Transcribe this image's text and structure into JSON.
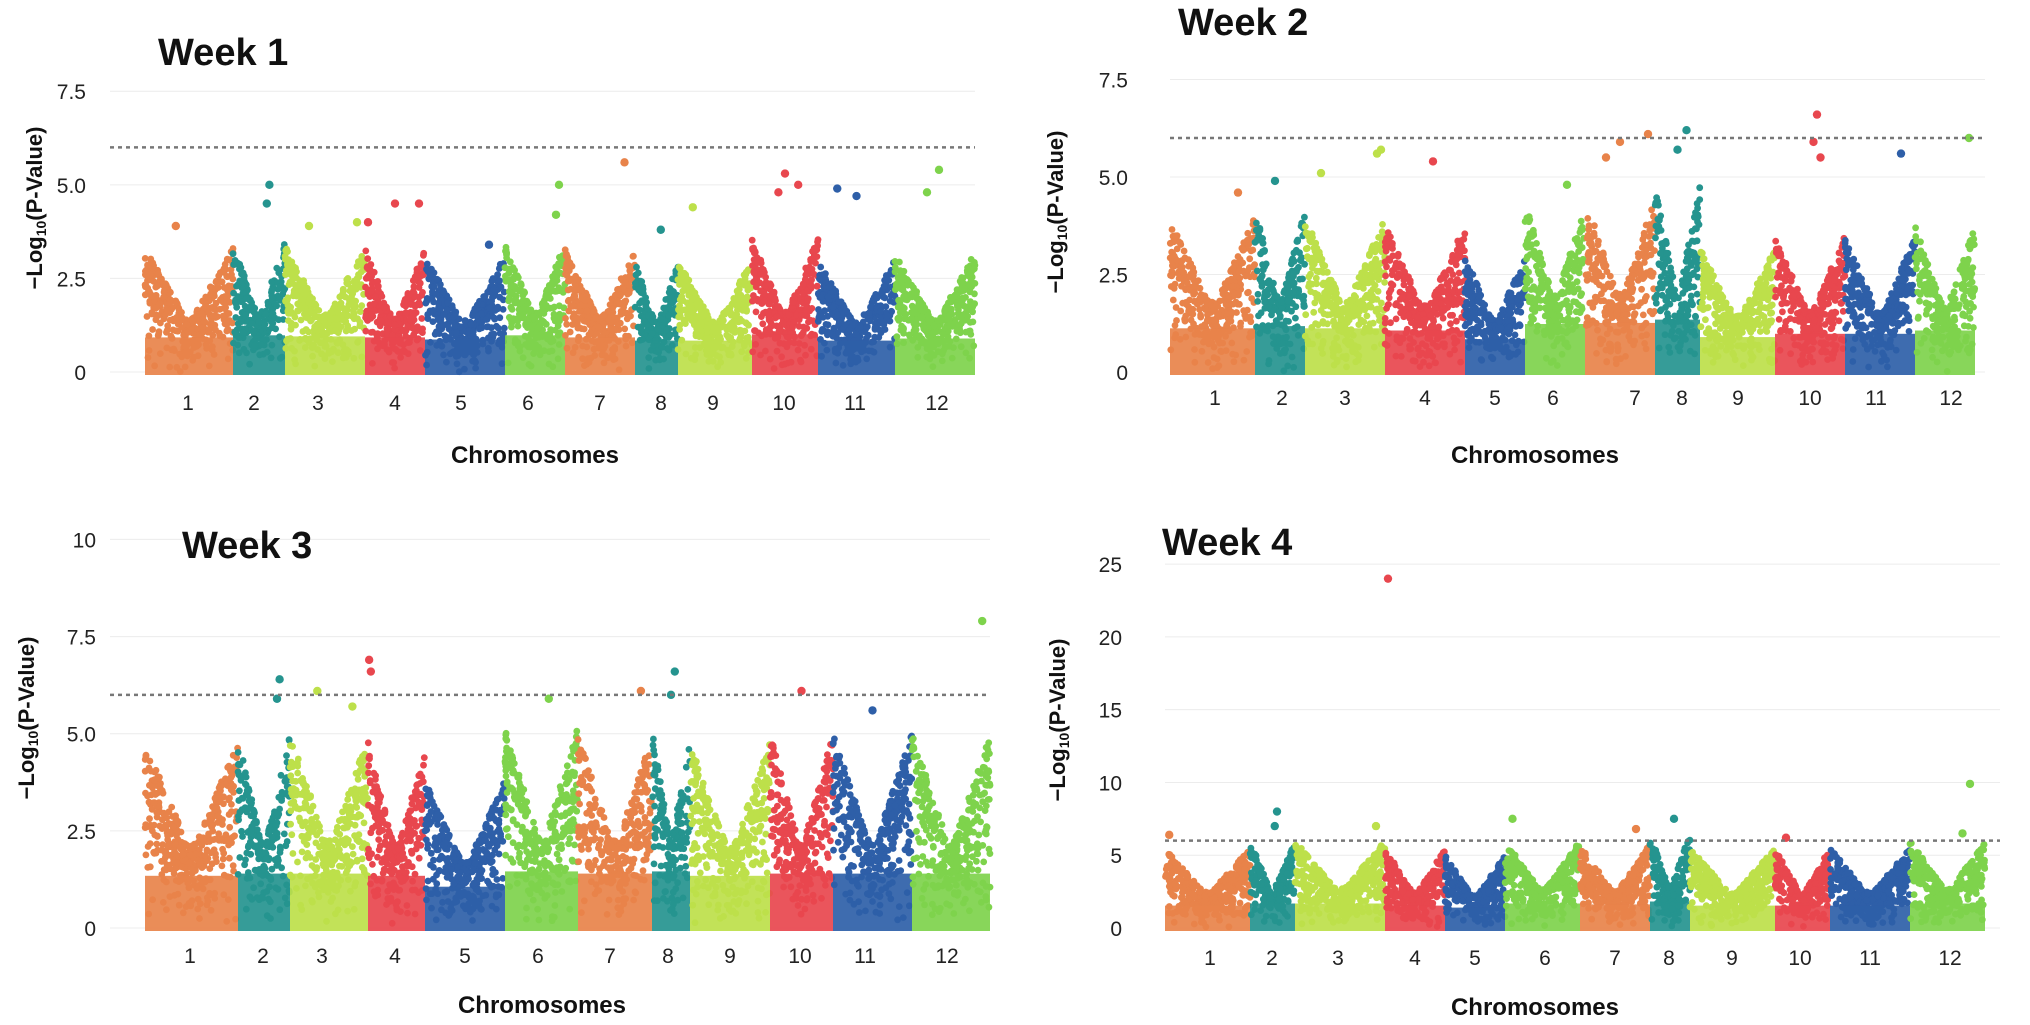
{
  "threshold": 6,
  "colors": {
    "chr1": "#e8834a",
    "chr2": "#25948f",
    "chr3": "#bde04a",
    "chr4": "#e8474e",
    "chr5": "#2e5fa8",
    "chr6": "#7ed34c",
    "chr7": "#e8834a",
    "chr8": "#25948f",
    "chr9": "#bde04a",
    "chr10": "#e8474e",
    "chr11": "#2e5fa8",
    "chr12": "#7ed34c",
    "threshold": "#777777",
    "grid": "#ececec"
  },
  "chart_data": [
    {
      "type": "scatter",
      "title": "Week 1",
      "xlabel": "Chromosomes",
      "ylabel": "−Log10(P-Value)",
      "ylabel_main": "−Log",
      "ylabel_sub": "10",
      "ylabel_tail": "(P-Value)",
      "ylim": [
        0,
        7.8
      ],
      "yticks": [
        "0",
        "2.5",
        "5.0",
        "7.5"
      ],
      "ytick_values": [
        0,
        2.5,
        5,
        7.5
      ],
      "categories": [
        "1",
        "2",
        "3",
        "4",
        "5",
        "6",
        "7",
        "8",
        "9",
        "10",
        "11",
        "12"
      ],
      "base_max": [
        3.3,
        3.5,
        3.4,
        3.3,
        3.1,
        3.5,
        3.3,
        3.0,
        3.0,
        3.6,
        3.0,
        3.2
      ],
      "peaks": [
        {
          "chr": 1,
          "pos": 0.35,
          "y": 3.9
        },
        {
          "chr": 2,
          "pos": 0.7,
          "y": 5.0
        },
        {
          "chr": 2,
          "pos": 0.65,
          "y": 4.5
        },
        {
          "chr": 3,
          "pos": 0.3,
          "y": 3.9
        },
        {
          "chr": 3,
          "pos": 0.9,
          "y": 4.0
        },
        {
          "chr": 4,
          "pos": 0.05,
          "y": 4.0
        },
        {
          "chr": 4,
          "pos": 0.5,
          "y": 4.5
        },
        {
          "chr": 4,
          "pos": 0.9,
          "y": 4.5
        },
        {
          "chr": 5,
          "pos": 0.8,
          "y": 3.4
        },
        {
          "chr": 6,
          "pos": 0.9,
          "y": 5.0
        },
        {
          "chr": 6,
          "pos": 0.85,
          "y": 4.2
        },
        {
          "chr": 7,
          "pos": 0.85,
          "y": 5.6
        },
        {
          "chr": 8,
          "pos": 0.6,
          "y": 3.8
        },
        {
          "chr": 9,
          "pos": 0.2,
          "y": 4.4
        },
        {
          "chr": 10,
          "pos": 0.5,
          "y": 5.3
        },
        {
          "chr": 10,
          "pos": 0.4,
          "y": 4.8
        },
        {
          "chr": 10,
          "pos": 0.7,
          "y": 5.0
        },
        {
          "chr": 11,
          "pos": 0.25,
          "y": 4.9
        },
        {
          "chr": 11,
          "pos": 0.5,
          "y": 4.7
        },
        {
          "chr": 12,
          "pos": 0.55,
          "y": 5.4
        },
        {
          "chr": 12,
          "pos": 0.4,
          "y": 4.8
        }
      ]
    },
    {
      "type": "scatter",
      "title": "Week 2",
      "xlabel": "Chromosomes",
      "ylabel": "−Log10(P-Value)",
      "ylabel_main": "−Log",
      "ylabel_sub": "10",
      "ylabel_tail": "(P-Value)",
      "ylim": [
        0,
        8.0
      ],
      "yticks": [
        "0",
        "2.5",
        "5.0",
        "7.5"
      ],
      "ytick_values": [
        0,
        2.5,
        5,
        7.5
      ],
      "categories": [
        "1",
        "2",
        "3",
        "4",
        "5",
        "6",
        "7",
        "8",
        "9",
        "10",
        "11",
        "12"
      ],
      "base_max": [
        4.0,
        4.2,
        4.0,
        3.8,
        3.0,
        4.4,
        4.5,
        4.8,
        3.2,
        3.5,
        3.5,
        3.8
      ],
      "peaks": [
        {
          "chr": 1,
          "pos": 0.8,
          "y": 4.6
        },
        {
          "chr": 2,
          "pos": 0.4,
          "y": 4.9
        },
        {
          "chr": 3,
          "pos": 0.2,
          "y": 5.1
        },
        {
          "chr": 3,
          "pos": 0.95,
          "y": 5.7
        },
        {
          "chr": 3,
          "pos": 0.9,
          "y": 5.6
        },
        {
          "chr": 4,
          "pos": 0.6,
          "y": 5.4
        },
        {
          "chr": 6,
          "pos": 0.7,
          "y": 4.8
        },
        {
          "chr": 7,
          "pos": 0.5,
          "y": 5.9
        },
        {
          "chr": 7,
          "pos": 0.9,
          "y": 6.1
        },
        {
          "chr": 7,
          "pos": 0.3,
          "y": 5.5
        },
        {
          "chr": 8,
          "pos": 0.7,
          "y": 6.2
        },
        {
          "chr": 8,
          "pos": 0.5,
          "y": 5.7
        },
        {
          "chr": 10,
          "pos": 0.6,
          "y": 6.6
        },
        {
          "chr": 10,
          "pos": 0.55,
          "y": 5.9
        },
        {
          "chr": 10,
          "pos": 0.65,
          "y": 5.5
        },
        {
          "chr": 11,
          "pos": 0.8,
          "y": 5.6
        },
        {
          "chr": 12,
          "pos": 0.9,
          "y": 6.0
        }
      ]
    },
    {
      "type": "scatter",
      "title": "Week 3",
      "xlabel": "Chromosomes",
      "ylabel": "−Log10(P-Value)",
      "ylabel_main": "−Log",
      "ylabel_sub": "10",
      "ylabel_tail": "(P-Value)",
      "ylim": [
        0,
        10.5
      ],
      "yticks": [
        "0",
        "2.5",
        "5.0",
        "7.5",
        "10"
      ],
      "ytick_values": [
        0,
        2.5,
        5,
        7.5,
        10
      ],
      "categories": [
        "1",
        "2",
        "3",
        "4",
        "5",
        "6",
        "7",
        "8",
        "9",
        "10",
        "11",
        "12"
      ],
      "base_max": [
        4.8,
        5.0,
        5.0,
        4.8,
        3.8,
        5.2,
        5.0,
        5.2,
        4.8,
        5.0,
        5.0,
        5.0
      ],
      "peaks": [
        {
          "chr": 2,
          "pos": 0.8,
          "y": 6.4
        },
        {
          "chr": 2,
          "pos": 0.75,
          "y": 5.9
        },
        {
          "chr": 3,
          "pos": 0.35,
          "y": 6.1
        },
        {
          "chr": 3,
          "pos": 0.8,
          "y": 5.7
        },
        {
          "chr": 4,
          "pos": 0.02,
          "y": 6.9
        },
        {
          "chr": 4,
          "pos": 0.05,
          "y": 6.6
        },
        {
          "chr": 6,
          "pos": 0.6,
          "y": 5.9
        },
        {
          "chr": 7,
          "pos": 0.85,
          "y": 6.1
        },
        {
          "chr": 8,
          "pos": 0.6,
          "y": 6.6
        },
        {
          "chr": 8,
          "pos": 0.5,
          "y": 6.0
        },
        {
          "chr": 10,
          "pos": 0.5,
          "y": 6.1
        },
        {
          "chr": 11,
          "pos": 0.5,
          "y": 5.6
        },
        {
          "chr": 12,
          "pos": 0.9,
          "y": 7.9
        }
      ]
    },
    {
      "type": "scatter",
      "title": "Week 4",
      "xlabel": "Chromosomes",
      "ylabel": "−Log10(P-Value)",
      "ylabel_main": "−Log",
      "ylabel_sub": "10",
      "ylabel_tail": "(P-Value)",
      "ylim": [
        0,
        27
      ],
      "yticks": [
        "0",
        "5",
        "10",
        "15",
        "20",
        "25"
      ],
      "ytick_values": [
        0,
        5,
        10,
        15,
        20,
        25
      ],
      "categories": [
        "1",
        "2",
        "3",
        "4",
        "5",
        "6",
        "7",
        "8",
        "9",
        "10",
        "11",
        "12"
      ],
      "base_max": [
        5.5,
        6.0,
        6.0,
        5.5,
        5.0,
        6.0,
        5.8,
        6.5,
        5.5,
        5.5,
        5.5,
        6.0
      ],
      "peaks": [
        {
          "chr": 1,
          "pos": 0.05,
          "y": 6.4
        },
        {
          "chr": 2,
          "pos": 0.6,
          "y": 8.0
        },
        {
          "chr": 2,
          "pos": 0.55,
          "y": 7.0
        },
        {
          "chr": 3,
          "pos": 0.9,
          "y": 7.0
        },
        {
          "chr": 4,
          "pos": 0.05,
          "y": 24.0
        },
        {
          "chr": 6,
          "pos": 0.1,
          "y": 7.5
        },
        {
          "chr": 7,
          "pos": 0.8,
          "y": 6.8
        },
        {
          "chr": 8,
          "pos": 0.6,
          "y": 7.5
        },
        {
          "chr": 10,
          "pos": 0.2,
          "y": 6.2
        },
        {
          "chr": 12,
          "pos": 0.8,
          "y": 9.9
        },
        {
          "chr": 12,
          "pos": 0.7,
          "y": 6.5
        }
      ]
    }
  ]
}
